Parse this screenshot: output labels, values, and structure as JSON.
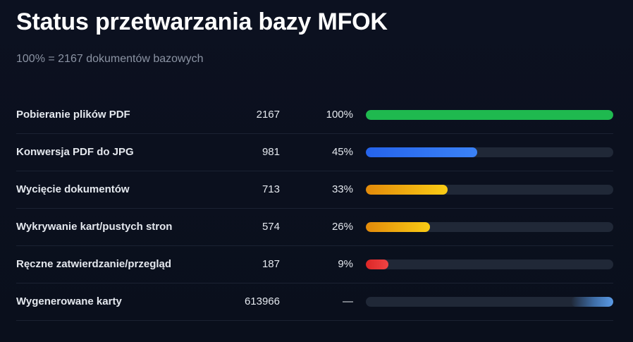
{
  "header": {
    "title": "Status przetwarzania bazy MFOK",
    "subtitle": "100% = 2167 dokumentów bazowych"
  },
  "rows": [
    {
      "label": "Pobieranie plików PDF",
      "count": "2167",
      "percent": "100%",
      "fraction": 1.0,
      "style": "green"
    },
    {
      "label": "Konwersja PDF do JPG",
      "count": "981",
      "percent": "45%",
      "fraction": 0.45,
      "style": "blue"
    },
    {
      "label": "Wycięcie dokumentów",
      "count": "713",
      "percent": "33%",
      "fraction": 0.33,
      "style": "amber"
    },
    {
      "label": "Wykrywanie kart/pustych stron",
      "count": "574",
      "percent": "26%",
      "fraction": 0.26,
      "style": "amber"
    },
    {
      "label": "Ręczne zatwierdzanie/przegląd",
      "count": "187",
      "percent": "9%",
      "fraction": 0.09,
      "style": "red"
    },
    {
      "label": "Wygenerowane karty",
      "count": "613966",
      "percent": "—",
      "fraction": null,
      "style": "tail"
    }
  ],
  "colors": {
    "background": "#0c1120",
    "track": "#202837",
    "green": "#1fb94f",
    "blue": "#3b82f6",
    "amber": "#facc15",
    "red": "#ef4444"
  }
}
